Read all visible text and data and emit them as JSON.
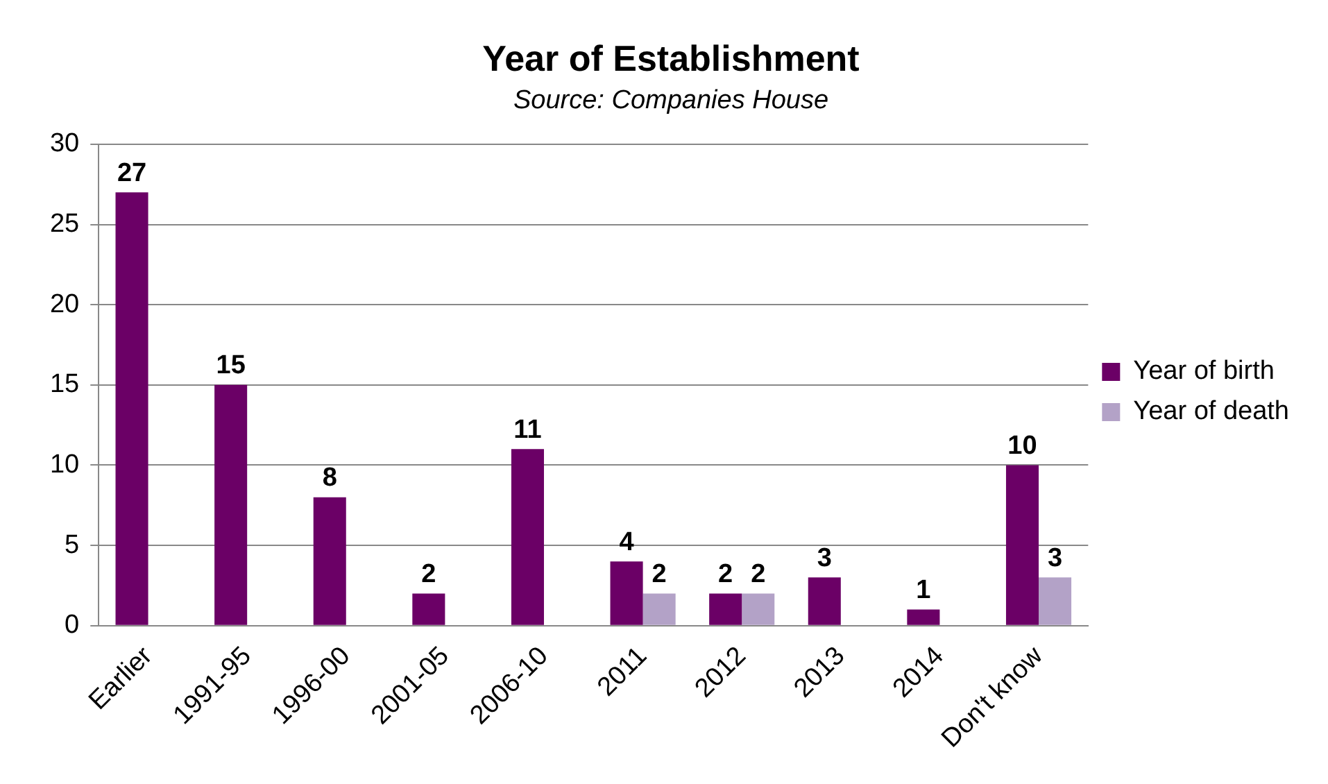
{
  "chart_data": {
    "type": "bar",
    "title": "Year of Establishment",
    "subtitle": "Source: Companies House",
    "categories": [
      "Earlier",
      "1991-95",
      "1996-00",
      "2001-05",
      "2006-10",
      "2011",
      "2012",
      "2013",
      "2014",
      "Don't know"
    ],
    "series": [
      {
        "name": "Year of birth",
        "color": "#6b0066",
        "values": [
          27,
          15,
          8,
          2,
          11,
          4,
          2,
          3,
          1,
          10
        ]
      },
      {
        "name": "Year of death",
        "color": "#b3a2c7",
        "values": [
          null,
          null,
          null,
          null,
          null,
          2,
          2,
          null,
          null,
          3
        ]
      }
    ],
    "ylim": [
      0,
      30
    ],
    "yticks": [
      0,
      5,
      10,
      15,
      20,
      25,
      30
    ],
    "grid": "y",
    "legend": "right",
    "data_labels": true
  }
}
